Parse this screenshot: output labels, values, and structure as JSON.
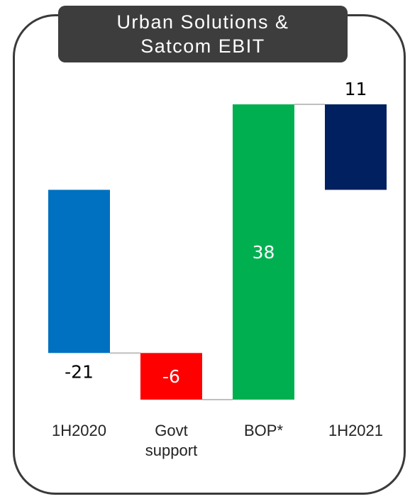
{
  "chart_data": {
    "type": "waterfall",
    "title": "Urban Solutions & Satcom EBIT",
    "categories": [
      "1H2020",
      "Govt support",
      "BOP*",
      "1H2021"
    ],
    "values": [
      -21,
      -6,
      38,
      11
    ],
    "is_total": [
      true,
      false,
      false,
      true
    ],
    "colors": [
      "#0070c0",
      "#ff0000",
      "#00b050",
      "#002060"
    ],
    "label_colors": [
      "#000000",
      "#ffffff",
      "#ffffff",
      "#000000"
    ],
    "connector_color": "#bfbfbf"
  }
}
